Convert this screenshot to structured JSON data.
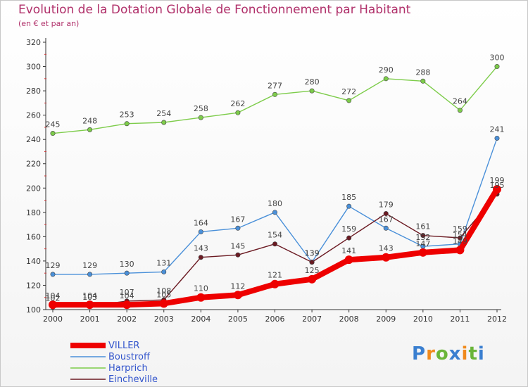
{
  "header": {
    "title": "Evolution de la Dotation Globale de Fonctionnement par Habitant",
    "subtitle": "(en € et par an)"
  },
  "logo": {
    "letters": [
      "P",
      "r",
      "o",
      "x",
      "i",
      "t",
      "i"
    ],
    "colors": [
      "#3a7fd0",
      "#f08a1c",
      "#6ab539",
      "#3a7fd0",
      "#f08a1c",
      "#6ab539",
      "#3a7fd0"
    ]
  },
  "chart_data": {
    "type": "line",
    "title": "Evolution de la Dotation Globale de Fonctionnement par Habitant",
    "subtitle": "(en € et par an)",
    "categories": [
      "2000",
      "2001",
      "2002",
      "2003",
      "2004",
      "2005",
      "2006",
      "2007",
      "2008",
      "2009",
      "2010",
      "2011",
      "2012"
    ],
    "ylim": [
      100,
      320
    ],
    "yticks": [
      100,
      120,
      140,
      160,
      180,
      200,
      220,
      240,
      260,
      280,
      300,
      320
    ],
    "grid": false,
    "legend_position": "bottom-left",
    "series": [
      {
        "name": "VILLER",
        "color": "#ee0000",
        "values": [
          104,
          104,
          104,
          105,
          110,
          112,
          121,
          125,
          141,
          143,
          147,
          149,
          199
        ]
      },
      {
        "name": "Boustroff",
        "color": "#4a90d9",
        "values": [
          129,
          129,
          130,
          131,
          164,
          167,
          180,
          139,
          185,
          167,
          152,
          154,
          241
        ]
      },
      {
        "name": "Harprich",
        "color": "#7dcc4a",
        "values": [
          245,
          248,
          253,
          254,
          258,
          262,
          277,
          280,
          272,
          290,
          288,
          264,
          300
        ]
      },
      {
        "name": "Eincheville",
        "color": "#6b1a22",
        "values": [
          102,
          103,
          107,
          108,
          143,
          145,
          154,
          139,
          159,
          179,
          161,
          159,
          195
        ]
      }
    ]
  }
}
